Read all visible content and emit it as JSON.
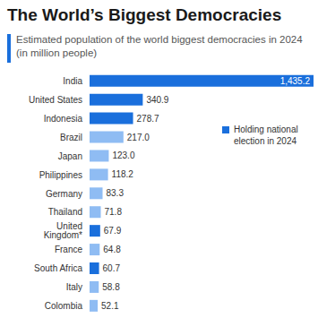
{
  "chart_data": {
    "type": "bar",
    "orientation": "horizontal",
    "title": "The World’s Biggest Democracies",
    "subtitle": "Estimated population of the world biggest democracies in 2024 (in million people)",
    "categories": [
      "India",
      "United States",
      "Indonesia",
      "Brazil",
      "Japan",
      "Philippines",
      "Germany",
      "Thailand",
      "United Kingdom*",
      "France",
      "South Africa",
      "Italy",
      "Colombia"
    ],
    "values": [
      1435.2,
      340.9,
      278.7,
      217.0,
      123.0,
      118.2,
      83.3,
      71.8,
      67.9,
      64.8,
      60.7,
      58.8,
      52.1
    ],
    "value_labels": [
      "1,435.2",
      "340.9",
      "278.7",
      "217.0",
      "123.0",
      "118.2",
      "83.3",
      "71.8",
      "67.9",
      "64.8",
      "60.7",
      "58.8",
      "52.1"
    ],
    "colors": [
      "#1a6fdc",
      "#1a6fdc",
      "#1a6fdc",
      "#8fbcf3",
      "#8fbcf3",
      "#8fbcf3",
      "#8fbcf3",
      "#8fbcf3",
      "#1a6fdc",
      "#8fbcf3",
      "#1a6fdc",
      "#8fbcf3",
      "#8fbcf3"
    ],
    "xlim": [
      0,
      1435.2
    ],
    "tick_labels": "y",
    "data_labels": true,
    "grid": false,
    "annotations": [
      "Holding national election in 2024"
    ]
  }
}
